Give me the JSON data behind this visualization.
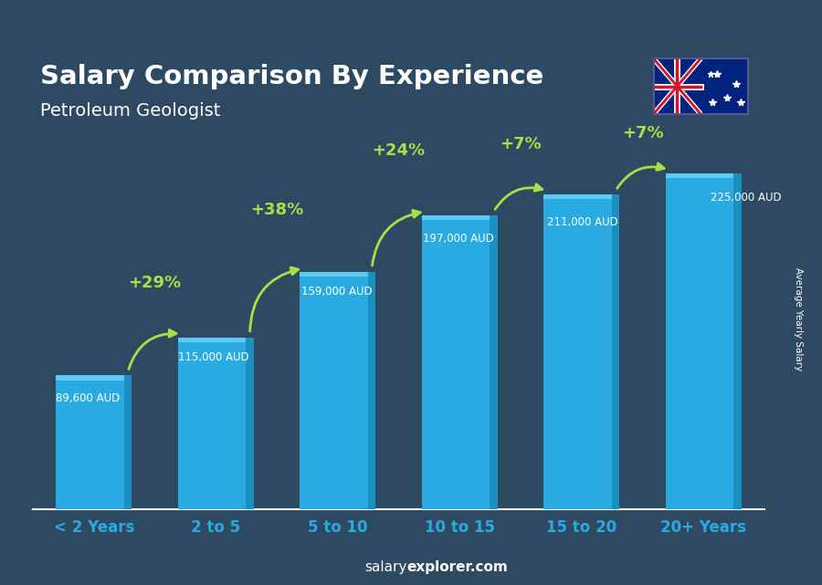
{
  "title": "Salary Comparison By Experience",
  "subtitle": "Petroleum Geologist",
  "ylabel": "Average Yearly Salary",
  "footer_normal": "salary",
  "footer_bold": "explorer.com",
  "categories": [
    "< 2 Years",
    "2 to 5",
    "5 to 10",
    "10 to 15",
    "15 to 20",
    "20+ Years"
  ],
  "values": [
    89600,
    115000,
    159000,
    197000,
    211000,
    225000
  ],
  "labels": [
    "89,600 AUD",
    "115,000 AUD",
    "159,000 AUD",
    "197,000 AUD",
    "211,000 AUD",
    "225,000 AUD"
  ],
  "pct_changes": [
    "+29%",
    "+38%",
    "+24%",
    "+7%",
    "+7%"
  ],
  "bar_color": "#29ABE2",
  "bar_highlight": "#5DCBF5",
  "bar_shadow": "#1A8FC0",
  "title_color": "#FFFFFF",
  "subtitle_color": "#FFFFFF",
  "label_color": "#FFFFFF",
  "pct_color": "#A8E04A",
  "footer_color": "#FFFFFF",
  "bg_color": "#2d4a62",
  "max_val": 255000,
  "arrow_color": "#A8E04A",
  "xtick_color": "#29ABE2"
}
